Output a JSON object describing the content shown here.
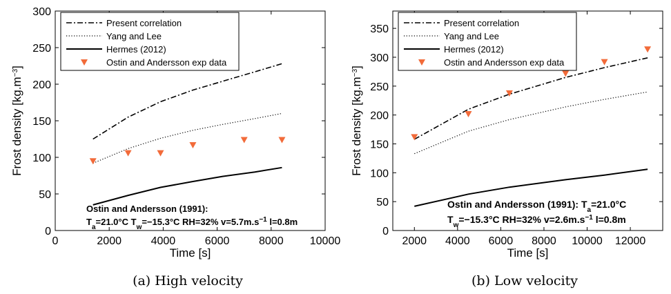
{
  "chart_data": [
    {
      "type": "line",
      "caption": "(a) High velocity",
      "xlabel": "Time [s]",
      "ylabel_main": "Frost density [kg.m",
      "ylabel_exp": "−3",
      "ylabel_end": "]",
      "xlim": [
        0,
        10000
      ],
      "ylim": [
        0,
        300
      ],
      "xticks": [
        0,
        2000,
        4000,
        6000,
        8000,
        10000
      ],
      "yticks": [
        0,
        50,
        100,
        150,
        200,
        250,
        300
      ],
      "legend_position": "top-left",
      "series": [
        {
          "name": "Present correlation",
          "style": "dashdot",
          "x": [
            1400,
            2700,
            3900,
            5100,
            6200,
            7400,
            8400
          ],
          "y": [
            125,
            155,
            176,
            192,
            204,
            217,
            228
          ]
        },
        {
          "name": "Yang and Lee",
          "style": "dotted",
          "x": [
            1400,
            2700,
            3900,
            5100,
            6200,
            7400,
            8400
          ],
          "y": [
            92,
            112,
            126,
            137,
            145,
            153,
            160
          ]
        },
        {
          "name": "Hermes (2012)",
          "style": "solid",
          "x": [
            1400,
            2700,
            3900,
            5100,
            6200,
            7400,
            8400
          ],
          "y": [
            35,
            48,
            59,
            67,
            74,
            80,
            86
          ]
        },
        {
          "name": "Ostin and Andersson exp data",
          "style": "marker",
          "color": "#f26b3a",
          "x": [
            1400,
            2700,
            3900,
            5100,
            7000,
            8400
          ],
          "y": [
            95,
            106,
            106,
            117,
            124,
            124
          ]
        }
      ],
      "annotation": {
        "line1": "Ostin and Andersson (1991):",
        "line2_parts": [
          "T",
          "a",
          "=21.0°C T",
          "w",
          "=−15.3°C RH=32% v=5.7m.s",
          "−1",
          " l=0.8m"
        ]
      }
    },
    {
      "type": "line",
      "caption": "(b) Low velocity",
      "xlabel": "Time [s]",
      "ylabel_main": "Frost density [kg.m",
      "ylabel_exp": "−3",
      "ylabel_end": "]",
      "xlim": [
        1000,
        13500
      ],
      "ylim": [
        0,
        380
      ],
      "xticks": [
        2000,
        4000,
        6000,
        8000,
        10000,
        12000
      ],
      "yticks": [
        0,
        50,
        100,
        150,
        200,
        250,
        300,
        350
      ],
      "legend_position": "top-left",
      "series": [
        {
          "name": "Present correlation",
          "style": "dashdot",
          "x": [
            2000,
            4500,
            6400,
            9000,
            10800,
            12800
          ],
          "y": [
            158,
            210,
            236,
            265,
            282,
            299
          ]
        },
        {
          "name": "Yang and Lee",
          "style": "dotted",
          "x": [
            2000,
            4500,
            6400,
            9000,
            10800,
            12800
          ],
          "y": [
            133,
            172,
            192,
            214,
            227,
            240
          ]
        },
        {
          "name": "Hermes (2012)",
          "style": "solid",
          "x": [
            2000,
            4500,
            6400,
            9000,
            10800,
            12800
          ],
          "y": [
            42,
            63,
            75,
            88,
            96,
            106
          ]
        },
        {
          "name": "Ostin and Andersson exp data",
          "style": "marker",
          "color": "#f26b3a",
          "x": [
            2000,
            4500,
            6400,
            9000,
            10800,
            12800
          ],
          "y": [
            162,
            202,
            238,
            272,
            292,
            314
          ]
        }
      ],
      "annotation": {
        "line1_parts": [
          "Ostin and Andersson (1991): T",
          "a",
          "=21.0°C"
        ],
        "line2_parts": [
          "T",
          "w",
          "=−15.3°C RH=32% v=2.6m.s",
          "−1",
          " l=0.8m"
        ]
      }
    }
  ]
}
